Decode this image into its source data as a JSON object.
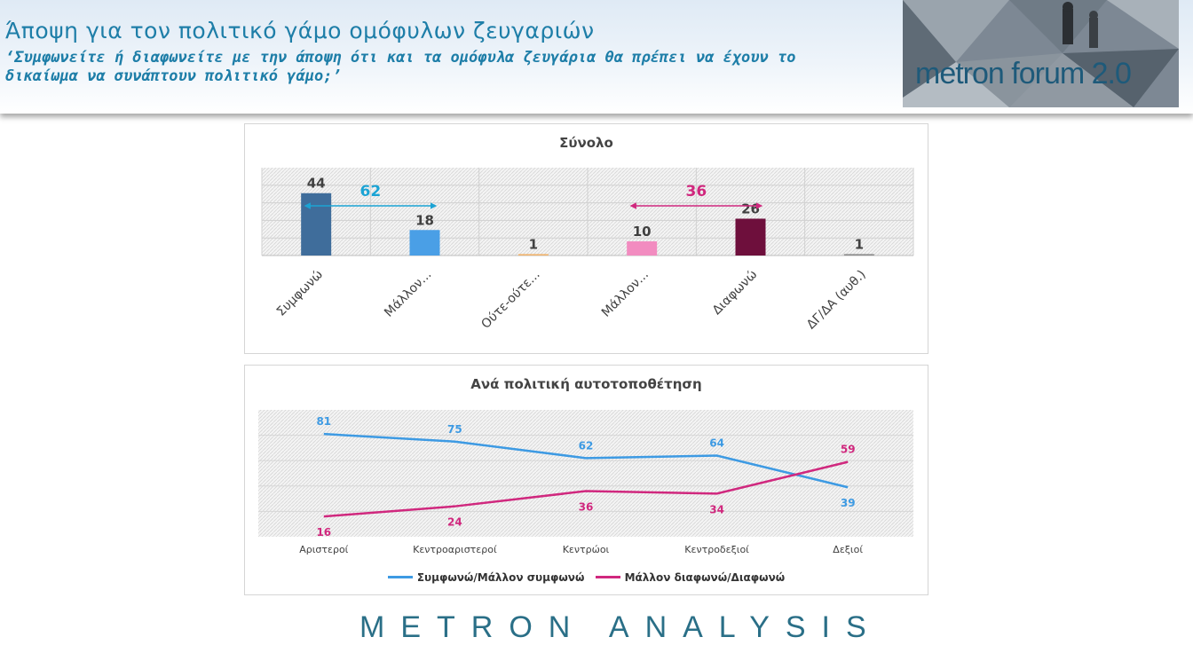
{
  "header": {
    "title": "Άποψη για τον πολιτικό γάμο ομόφυλων ζευγαριών",
    "subtitle": "‘Συμφωνείτε ή διαφωνείτε με την άποψη ότι και τα ομόφυλα ζευγάρια θα πρέπει να έχουν το δικαίωμα να συνάπτουν πολιτικό γάμο;’"
  },
  "logo": {
    "text": "metron forum 2.0"
  },
  "footer": {
    "watermark": "METRON ANALYSIS"
  },
  "colors": {
    "agree": "#3d9ae3",
    "disagree": "#d0287e",
    "bar_colors": [
      "#3f6d9b",
      "#4a9fe6",
      "#f0b36b",
      "#f28cc0",
      "#6e0f3c",
      "#8c8c8c"
    ]
  },
  "chart_data": [
    {
      "type": "bar",
      "title": "Σύνολο",
      "categories": [
        "Συμφωνώ",
        "Μάλλον...",
        "Ούτε-ούτε...",
        "Μάλλον...",
        "Διαφωνώ",
        "ΔΓ/ΔΑ (αυθ.)"
      ],
      "values": [
        44,
        18,
        1,
        10,
        26,
        1
      ],
      "ylim": [
        0,
        62
      ],
      "annotations": [
        {
          "label": "62",
          "from": 0,
          "to": 1,
          "color": "#1ba3d4"
        },
        {
          "label": "36",
          "from": 3,
          "to": 4,
          "color": "#d0287e"
        }
      ]
    },
    {
      "type": "line",
      "title": "Ανά πολιτική αυτοτοποθέτηση",
      "categories": [
        "Αριστεροί",
        "Κεντροαριστεροί",
        "Κεντρώοι",
        "Κεντροδεξιοί",
        "Δεξιοί"
      ],
      "ylim": [
        0,
        100
      ],
      "series": [
        {
          "name": "Συμφωνώ/Μάλλον συμφωνώ",
          "values": [
            81,
            75,
            62,
            64,
            39
          ],
          "color": "#3d9ae3"
        },
        {
          "name": "Μάλλον διαφωνώ/Διαφωνώ",
          "values": [
            16,
            24,
            36,
            34,
            59
          ],
          "color": "#d0287e"
        }
      ]
    }
  ]
}
